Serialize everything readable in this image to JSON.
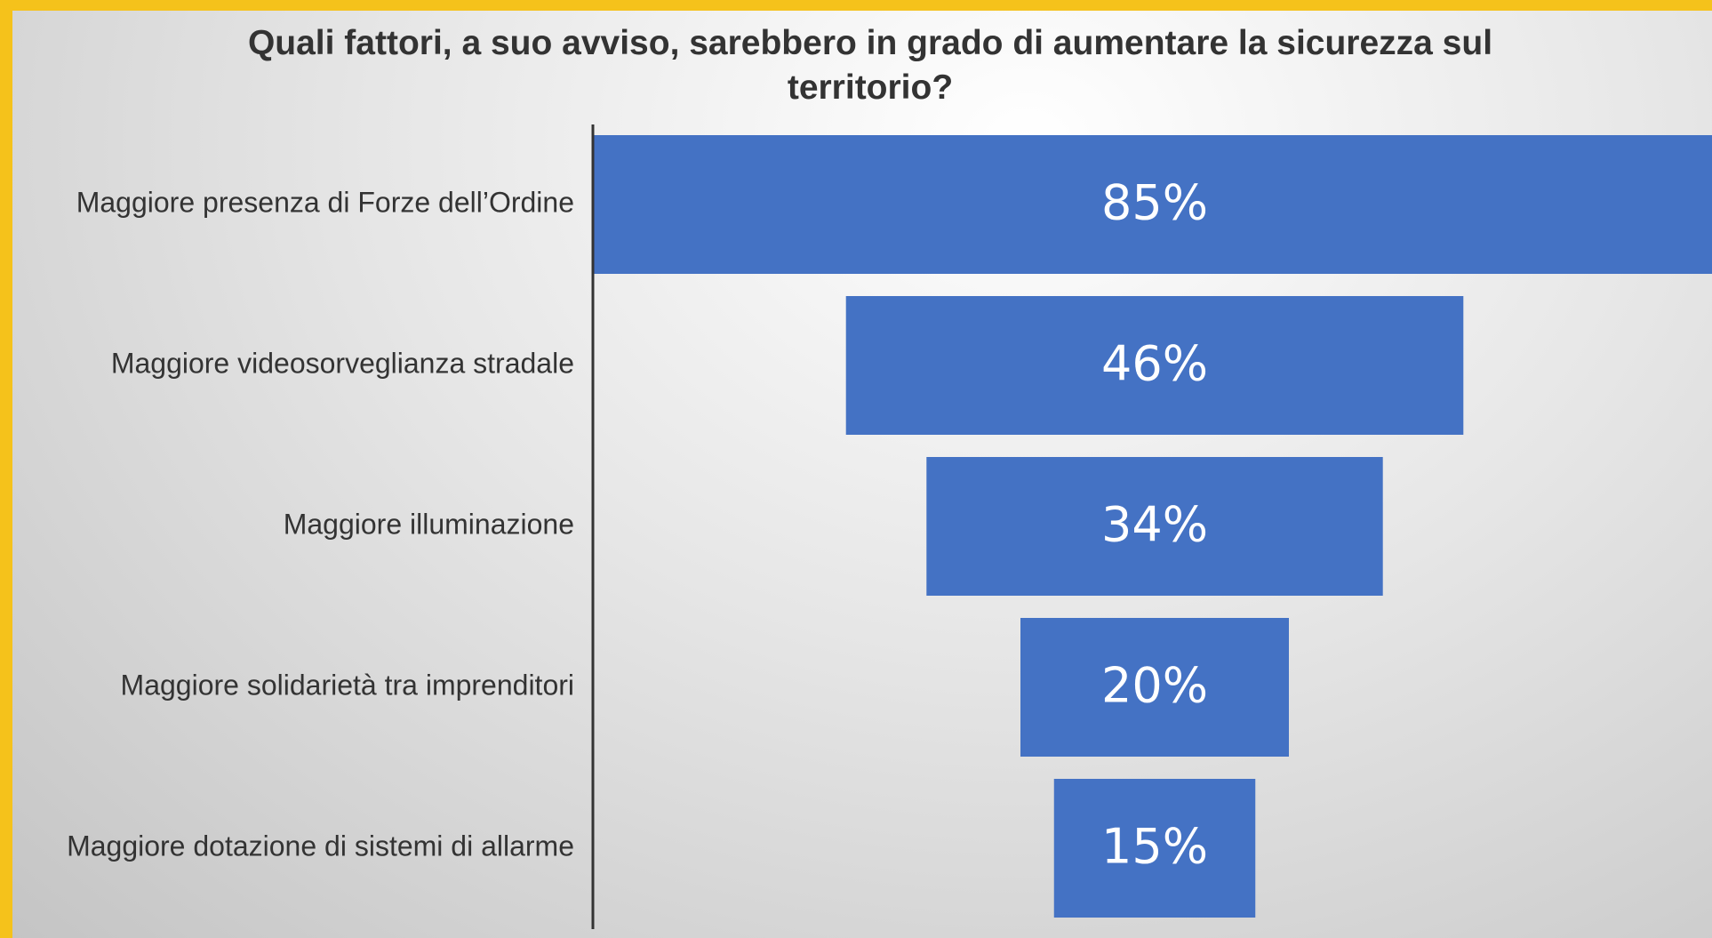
{
  "chart_data": {
    "type": "funnel",
    "title": "Quali fattori, a suo avviso, sarebbero in grado di aumentare la sicurezza sul territorio?",
    "categories": [
      "Maggiore presenza di Forze dell’Ordine",
      "Maggiore videosorveglianza stradale",
      "Maggiore illuminazione",
      "Maggiore solidarietà tra imprenditori",
      "Maggiore dotazione di sistemi di allarme"
    ],
    "values": [
      85,
      46,
      34,
      20,
      15
    ],
    "value_labels": [
      "85%",
      "46%",
      "34%",
      "20%",
      "15%"
    ],
    "color": "#4472c4"
  }
}
